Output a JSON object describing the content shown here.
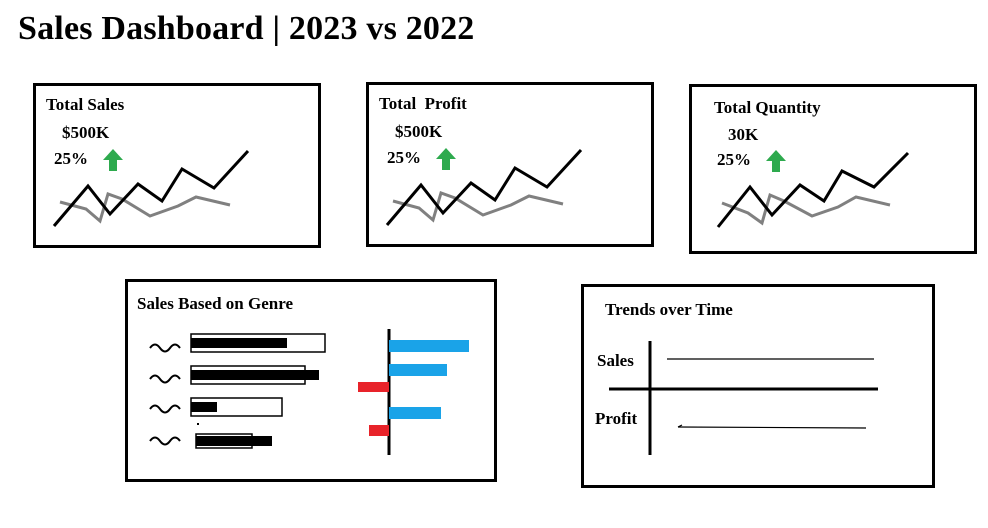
{
  "page_title": "Sales Dashboard | 2023 vs 2022",
  "kpis": [
    {
      "title": "Total Sales",
      "value": "$500K",
      "change": "25%"
    },
    {
      "title": "Total  Profit",
      "value": "$500K",
      "change": "25%"
    },
    {
      "title": "Total Quantity",
      "value": "30K",
      "change": "25%"
    }
  ],
  "genre": {
    "title": "Sales Based on Genre",
    "colors": {
      "positive": "#1aa3e8",
      "negative": "#e8232a",
      "bar": "#000000"
    }
  },
  "trends": {
    "title": "Trends over Time",
    "rows": [
      "Sales",
      "Profit"
    ]
  },
  "colors": {
    "up_arrow": "#2eaa4e",
    "line_current": "#000000",
    "line_previous": "#808080"
  }
}
